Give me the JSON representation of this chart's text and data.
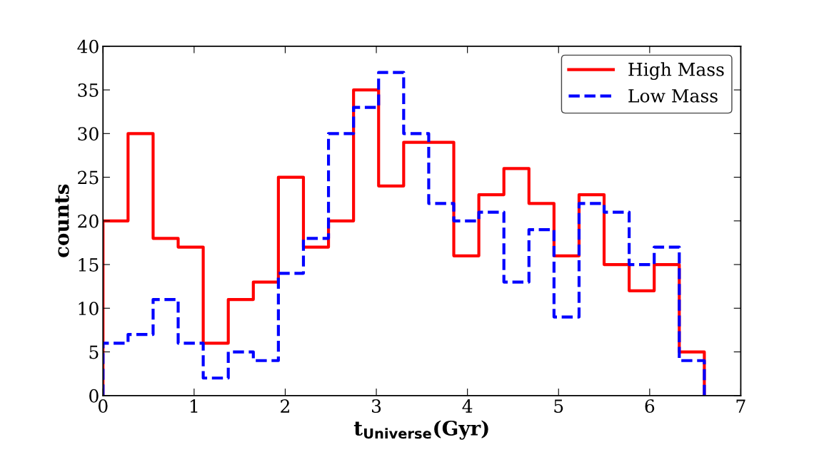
{
  "chart_data": {
    "type": "histogram",
    "xlabel": "t$_{Universe}$(Gyr)",
    "ylabel": "counts",
    "bins": [
      0,
      0.275,
      0.55,
      0.825,
      1.1,
      1.375,
      1.65,
      1.925,
      2.2,
      2.475,
      2.75,
      3.025,
      3.3,
      3.575,
      3.85,
      4.125,
      4.4,
      4.675,
      4.95,
      5.225,
      5.5,
      5.775,
      6.05,
      6.325,
      6.6
    ],
    "series": [
      {
        "name": "High Mass",
        "color": "#ff0000",
        "line_style": "solid",
        "values": [
          20,
          30,
          18,
          17,
          6,
          11,
          13,
          25,
          17,
          20,
          35,
          24,
          29,
          29,
          16,
          23,
          26,
          22,
          16,
          23,
          15,
          12,
          15,
          5
        ]
      },
      {
        "name": "Low Mass",
        "color": "#0000ff",
        "line_style": "dashed",
        "values": [
          6,
          7,
          11,
          6,
          2,
          5,
          4,
          14,
          18,
          30,
          33,
          37,
          30,
          22,
          20,
          21,
          13,
          19,
          9,
          22,
          21,
          15,
          17,
          4
        ]
      }
    ],
    "xlim": [
      0,
      7
    ],
    "xticks": [
      0,
      1,
      2,
      3,
      4,
      5,
      6,
      7
    ],
    "ylim": [
      0,
      40
    ],
    "yticks": [
      0,
      5,
      10,
      15,
      20,
      25,
      30,
      35,
      40
    ],
    "grid": false,
    "legend": "top right"
  }
}
